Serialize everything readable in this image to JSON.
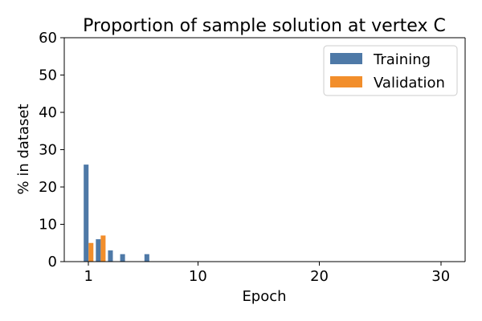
{
  "chart_data": {
    "type": "bar",
    "title": "Proportion of sample solution at vertex C",
    "xlabel": "Epoch",
    "ylabel": "% in dataset",
    "xlim": [
      -1,
      32
    ],
    "ylim": [
      0,
      60
    ],
    "xticks": [
      1,
      10,
      20,
      30
    ],
    "yticks": [
      0,
      10,
      20,
      30,
      40,
      50,
      60
    ],
    "grid": false,
    "legend_position": "top-right",
    "series": [
      {
        "name": "Training",
        "color": "#4e79a7",
        "points": [
          {
            "x": 1,
            "y": 26
          },
          {
            "x": 2,
            "y": 6
          },
          {
            "x": 3,
            "y": 3
          },
          {
            "x": 4,
            "y": 2
          },
          {
            "x": 6,
            "y": 2
          }
        ]
      },
      {
        "name": "Validation",
        "color": "#f28e2b",
        "points": [
          {
            "x": 1,
            "y": 5
          },
          {
            "x": 2,
            "y": 7
          }
        ]
      }
    ]
  }
}
